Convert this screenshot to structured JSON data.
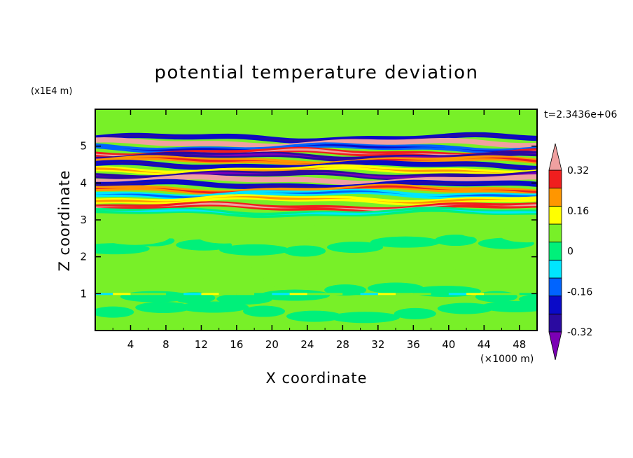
{
  "chart_data": {
    "type": "heatmap",
    "title": "potential temperature deviation",
    "xlabel": "X coordinate",
    "ylabel": "Z coordinate",
    "x_unit": "(×1000 m)",
    "y_unit": "(x1E4 m)",
    "time_label": "t=2.3436e+06",
    "xlim": [
      0,
      50
    ],
    "ylim": [
      0,
      6
    ],
    "x_ticks": [
      4,
      8,
      12,
      16,
      20,
      24,
      28,
      32,
      36,
      40,
      44,
      48
    ],
    "y_ticks": [
      1,
      2,
      3,
      4,
      5
    ],
    "colorbar": {
      "levels": [
        -0.4,
        -0.32,
        -0.24,
        -0.16,
        -0.08,
        0,
        0.08,
        0.16,
        0.24,
        0.32,
        0.4
      ],
      "labels": [
        "0.32",
        "0.16",
        "0",
        "-0.16",
        "-0.32"
      ],
      "label_values": [
        0.32,
        0.16,
        0,
        -0.16,
        -0.32
      ],
      "colors": [
        "#7b00b4",
        "#2a0aa0",
        "#0a0ac8",
        "#0064ff",
        "#00e6ff",
        "#00f07a",
        "#78f028",
        "#ffff00",
        "#ff9600",
        "#f01e1e",
        "#f0a0a0"
      ],
      "extend": "both"
    },
    "bands": [
      {
        "z": 5.22,
        "val": -0.3
      },
      {
        "z": 5.08,
        "val": 0.36
      },
      {
        "z": 4.95,
        "val": -0.22
      },
      {
        "z": 4.82,
        "val": 0.3
      },
      {
        "z": 4.72,
        "val": -0.36
      },
      {
        "z": 4.6,
        "val": 0.2
      },
      {
        "z": 4.48,
        "val": -0.28
      },
      {
        "z": 4.35,
        "val": 0.12
      },
      {
        "z": 4.22,
        "val": -0.34
      },
      {
        "z": 4.08,
        "val": 0.36
      },
      {
        "z": 3.95,
        "val": -0.3
      },
      {
        "z": 3.82,
        "val": 0.18
      },
      {
        "z": 3.7,
        "val": -0.14
      },
      {
        "z": 3.55,
        "val": 0.1
      },
      {
        "z": 3.35,
        "val": 0.24
      },
      {
        "z": 3.2,
        "val": -0.04
      }
    ]
  }
}
